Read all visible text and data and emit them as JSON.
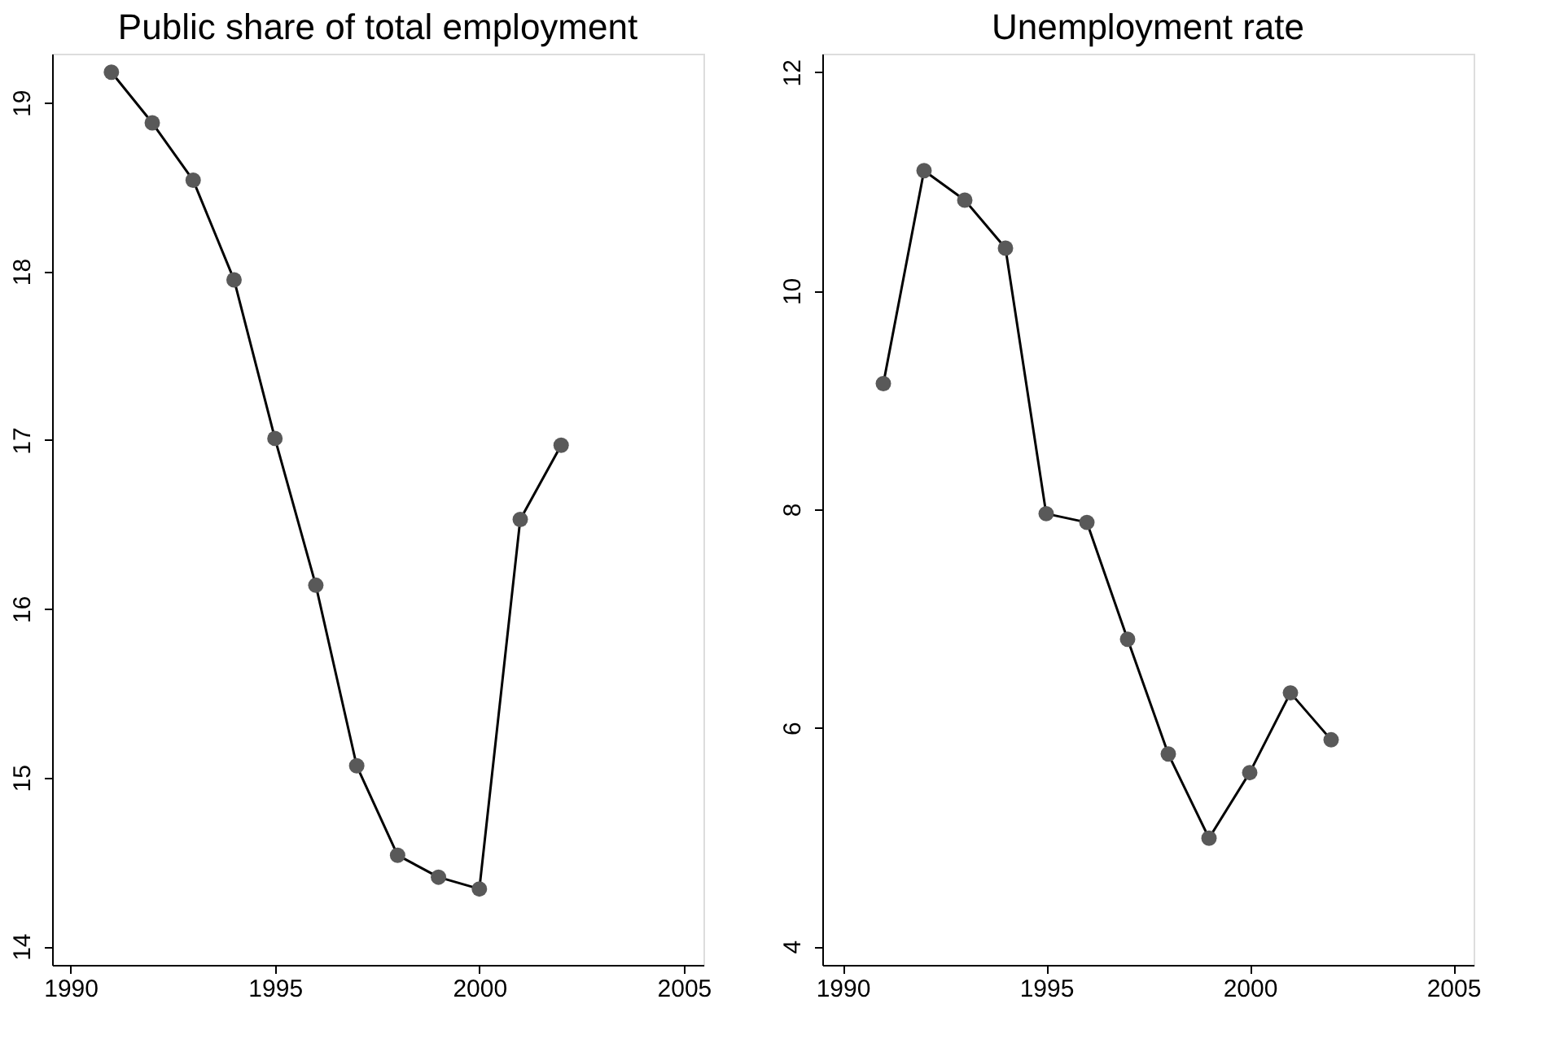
{
  "chart_data": [
    {
      "type": "line",
      "title": "Public share of total employment",
      "x": [
        1991,
        1992,
        1993,
        1994,
        1995,
        1996,
        1997,
        1998,
        1999,
        2000,
        2001,
        2002
      ],
      "series": [
        {
          "color": "#000000",
          "values": [
            19.18,
            18.88,
            18.54,
            17.95,
            17.01,
            16.14,
            15.07,
            14.54,
            14.41,
            14.34,
            16.53,
            16.97
          ]
        }
      ],
      "marker": "circle",
      "line_style": "solid",
      "grid": false,
      "xlim": [
        1989.55,
        2005.48
      ],
      "xticks": [
        1990,
        1995,
        2000,
        2005
      ],
      "ylim": [
        13.89,
        19.29
      ],
      "yticks": [
        14,
        15,
        16,
        17,
        18,
        19
      ]
    },
    {
      "type": "line",
      "title": "Unemployment rate",
      "x": [
        1991,
        1992,
        1993,
        1994,
        1995,
        1996,
        1997,
        1998,
        1999,
        2000,
        2001,
        2002
      ],
      "series": [
        {
          "color": "#000000",
          "values": [
            9.15,
            11.1,
            10.83,
            10.39,
            7.96,
            7.88,
            6.81,
            5.76,
            4.99,
            5.59,
            6.32,
            5.89
          ]
        }
      ],
      "marker": "circle",
      "line_style": "solid",
      "grid": false,
      "xlim": [
        1989.5,
        2005.5
      ],
      "xticks": [
        1990,
        1995,
        2000,
        2005
      ],
      "ylim": [
        3.83,
        12.17
      ],
      "yticks": [
        4,
        6,
        8,
        10,
        12
      ]
    }
  ]
}
